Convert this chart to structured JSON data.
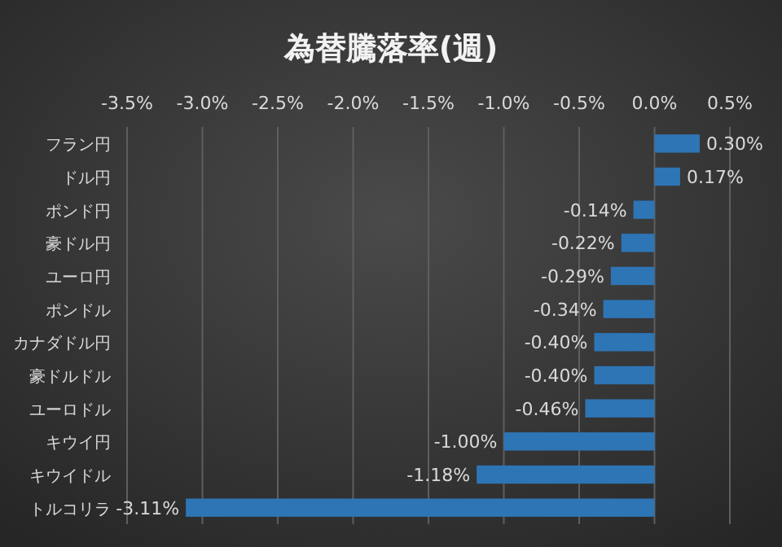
{
  "chart_data": {
    "type": "bar",
    "orientation": "horizontal",
    "title": "為替騰落率(週)",
    "categories": [
      "フラン円",
      "ドル円",
      "ポンド円",
      "豪ドル円",
      "ユーロ円",
      "ポンドル",
      "カナダドル円",
      "豪ドルドル",
      "ユーロドル",
      "キウイ円",
      "キウイドル",
      "トルコリラ"
    ],
    "values": [
      0.3,
      0.17,
      -0.14,
      -0.22,
      -0.29,
      -0.34,
      -0.4,
      -0.4,
      -0.46,
      -1.0,
      -1.18,
      -3.11
    ],
    "value_labels": [
      "0.30%",
      "0.17%",
      "-0.14%",
      "-0.22%",
      "-0.29%",
      "-0.34%",
      "-0.40%",
      "-0.40%",
      "-0.46%",
      "-1.00%",
      "-1.18%",
      "-3.11%"
    ],
    "color": "#2e75b6",
    "xlim": [
      -3.5,
      0.5
    ],
    "xticks": [
      {
        "value": -3.5,
        "label": "-3.5%"
      },
      {
        "value": -3.0,
        "label": "-3.0%"
      },
      {
        "value": -2.5,
        "label": "-2.5%"
      },
      {
        "value": -2.0,
        "label": "-2.0%"
      },
      {
        "value": -1.5,
        "label": "-1.5%"
      },
      {
        "value": -1.0,
        "label": "-1.0%"
      },
      {
        "value": -0.5,
        "label": "-0.5%"
      },
      {
        "value": 0.0,
        "label": "0.0%"
      },
      {
        "value": 0.5,
        "label": "0.5%"
      }
    ],
    "grid": "x"
  }
}
